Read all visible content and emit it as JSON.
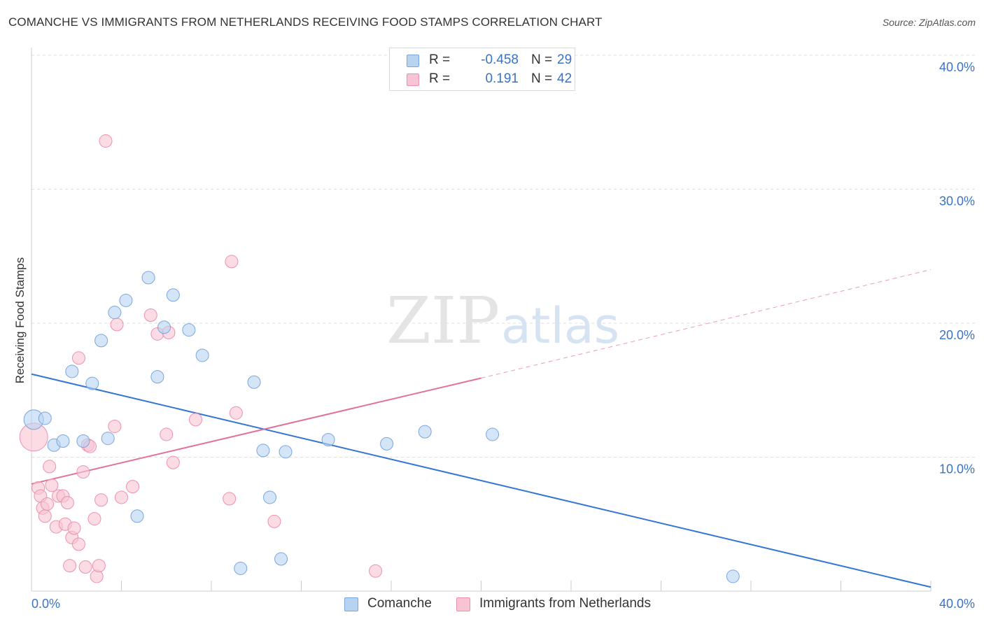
{
  "header": {
    "title": "COMANCHE VS IMMIGRANTS FROM NETHERLANDS RECEIVING FOOD STAMPS CORRELATION CHART",
    "source": "Source: ZipAtlas.com"
  },
  "watermark": {
    "zip": "ZIP",
    "atlas": "atlas"
  },
  "legend": {
    "rows": [
      {
        "r_label": "R =",
        "r_value": "-0.458",
        "n_label": "N =",
        "n_value": "29"
      },
      {
        "r_label": "R =",
        "r_value": "0.191",
        "n_label": "N =",
        "n_value": "42"
      }
    ]
  },
  "bottom_legend": {
    "series_a": "Comanche",
    "series_b": "Immigrants from Netherlands"
  },
  "colors": {
    "comanche_fill": "#b8d3f2",
    "comanche_stroke": "#7aa6dc",
    "comanche_line": "#3575d3",
    "netherlands_fill": "#f8c4d4",
    "netherlands_stroke": "#ec91ad",
    "netherlands_line": "#e2719a",
    "axis_text": "#3b73c4",
    "grid": "#dddddd"
  },
  "chart_data": {
    "type": "scatter",
    "xlabel": "",
    "ylabel": "Receiving Food Stamps",
    "xlim": [
      0,
      40
    ],
    "ylim": [
      0,
      40
    ],
    "x_tick_labels": [
      "0.0%",
      "40.0%"
    ],
    "y_ticks": [
      10,
      20,
      30,
      40
    ],
    "y_tick_labels": [
      "10.0%",
      "20.0%",
      "30.0%",
      "40.0%"
    ],
    "grid": true,
    "legend_position": "top-center",
    "series": [
      {
        "name": "Comanche",
        "points": [
          [
            0.1,
            12.8
          ],
          [
            0.6,
            12.9
          ],
          [
            1.0,
            10.9
          ],
          [
            1.4,
            11.2
          ],
          [
            1.8,
            16.4
          ],
          [
            2.3,
            11.2
          ],
          [
            2.7,
            15.5
          ],
          [
            3.1,
            18.7
          ],
          [
            3.4,
            11.4
          ],
          [
            3.7,
            20.8
          ],
          [
            4.2,
            21.7
          ],
          [
            4.7,
            5.6
          ],
          [
            5.2,
            23.4
          ],
          [
            5.6,
            16.0
          ],
          [
            5.9,
            19.7
          ],
          [
            6.3,
            22.1
          ],
          [
            7.0,
            19.5
          ],
          [
            7.6,
            17.6
          ],
          [
            9.3,
            1.7
          ],
          [
            9.9,
            15.6
          ],
          [
            10.3,
            10.5
          ],
          [
            10.6,
            7.0
          ],
          [
            11.1,
            2.4
          ],
          [
            11.3,
            10.4
          ],
          [
            13.2,
            11.3
          ],
          [
            15.8,
            11.0
          ],
          [
            17.5,
            11.9
          ],
          [
            20.5,
            11.7
          ],
          [
            31.2,
            1.1
          ]
        ],
        "trend": {
          "x": [
            0,
            40
          ],
          "y": [
            16.2,
            0.3
          ]
        }
      },
      {
        "name": "Immigrants from Netherlands",
        "points": [
          [
            0.1,
            11.5
          ],
          [
            0.3,
            7.7
          ],
          [
            0.4,
            7.1
          ],
          [
            0.5,
            6.2
          ],
          [
            0.6,
            5.6
          ],
          [
            0.7,
            6.5
          ],
          [
            0.8,
            9.3
          ],
          [
            0.9,
            7.9
          ],
          [
            1.1,
            4.8
          ],
          [
            1.2,
            7.1
          ],
          [
            1.4,
            7.1
          ],
          [
            1.5,
            5.0
          ],
          [
            1.6,
            6.6
          ],
          [
            1.7,
            1.9
          ],
          [
            1.8,
            4.0
          ],
          [
            1.9,
            4.7
          ],
          [
            2.1,
            17.4
          ],
          [
            2.1,
            3.5
          ],
          [
            2.3,
            8.9
          ],
          [
            2.4,
            1.8
          ],
          [
            2.5,
            10.9
          ],
          [
            2.6,
            10.8
          ],
          [
            2.8,
            5.4
          ],
          [
            2.9,
            1.1
          ],
          [
            3.0,
            1.9
          ],
          [
            3.1,
            6.8
          ],
          [
            3.3,
            33.6
          ],
          [
            3.7,
            12.3
          ],
          [
            3.8,
            19.9
          ],
          [
            4.0,
            7.0
          ],
          [
            4.5,
            7.8
          ],
          [
            5.3,
            20.6
          ],
          [
            5.6,
            19.2
          ],
          [
            6.0,
            11.7
          ],
          [
            6.1,
            19.3
          ],
          [
            6.3,
            9.6
          ],
          [
            7.3,
            12.8
          ],
          [
            8.8,
            6.9
          ],
          [
            8.9,
            24.6
          ],
          [
            9.1,
            13.3
          ],
          [
            10.8,
            5.2
          ],
          [
            15.3,
            1.5
          ]
        ],
        "trend": {
          "x": [
            0,
            20
          ],
          "y": [
            8.0,
            15.9
          ]
        },
        "trend_dashed": {
          "x": [
            20,
            40
          ],
          "y": [
            15.9,
            24.0
          ]
        }
      }
    ]
  }
}
